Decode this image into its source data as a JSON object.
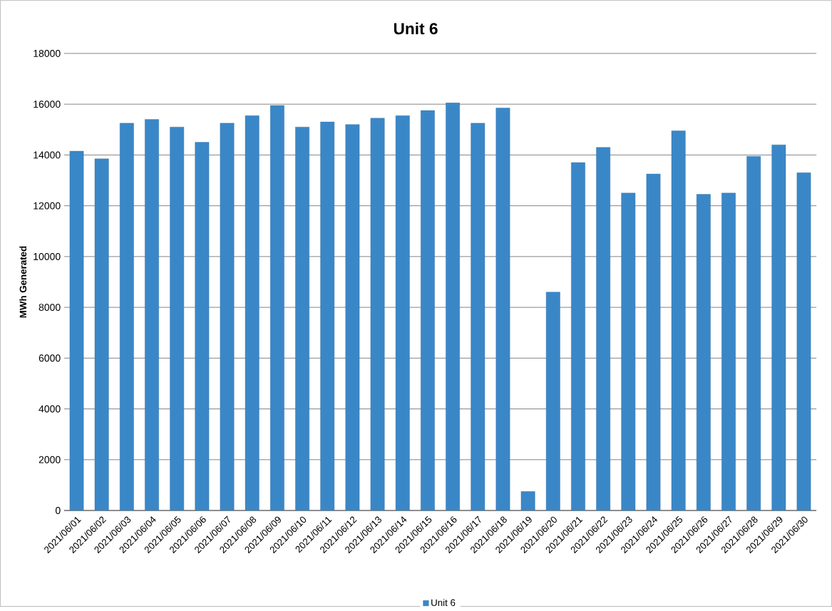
{
  "chart_data": {
    "type": "bar",
    "title": "Unit 6",
    "ylabel": "MWh Generated",
    "categories": [
      "2021/06/01",
      "2021/06/02",
      "2021/06/03",
      "2021/06/04",
      "2021/06/05",
      "2021/06/06",
      "2021/06/07",
      "2021/06/08",
      "2021/06/09",
      "2021/06/10",
      "2021/06/11",
      "2021/06/12",
      "2021/06/13",
      "2021/06/14",
      "2021/06/15",
      "2021/06/16",
      "2021/06/17",
      "2021/06/18",
      "2021/06/19",
      "2021/06/20",
      "2021/06/21",
      "2021/06/22",
      "2021/06/23",
      "2021/06/24",
      "2021/06/25",
      "2021/06/26",
      "2021/06/27",
      "2021/06/28",
      "2021/06/29",
      "2021/06/30"
    ],
    "series": [
      {
        "name": "Unit 6",
        "color": "#3a87c8",
        "values": [
          14150,
          13850,
          15250,
          15400,
          15100,
          14500,
          15250,
          15550,
          15950,
          15100,
          15300,
          15200,
          15450,
          15550,
          15750,
          16050,
          15250,
          15850,
          750,
          8600,
          13700,
          14300,
          12500,
          13250,
          14950,
          12450,
          12500,
          13950,
          14400,
          13300
        ]
      }
    ],
    "ylim": [
      0,
      18000
    ],
    "yticks": [
      0,
      2000,
      4000,
      6000,
      8000,
      10000,
      12000,
      14000,
      16000,
      18000
    ],
    "grid": "y",
    "legend": "bottom"
  }
}
